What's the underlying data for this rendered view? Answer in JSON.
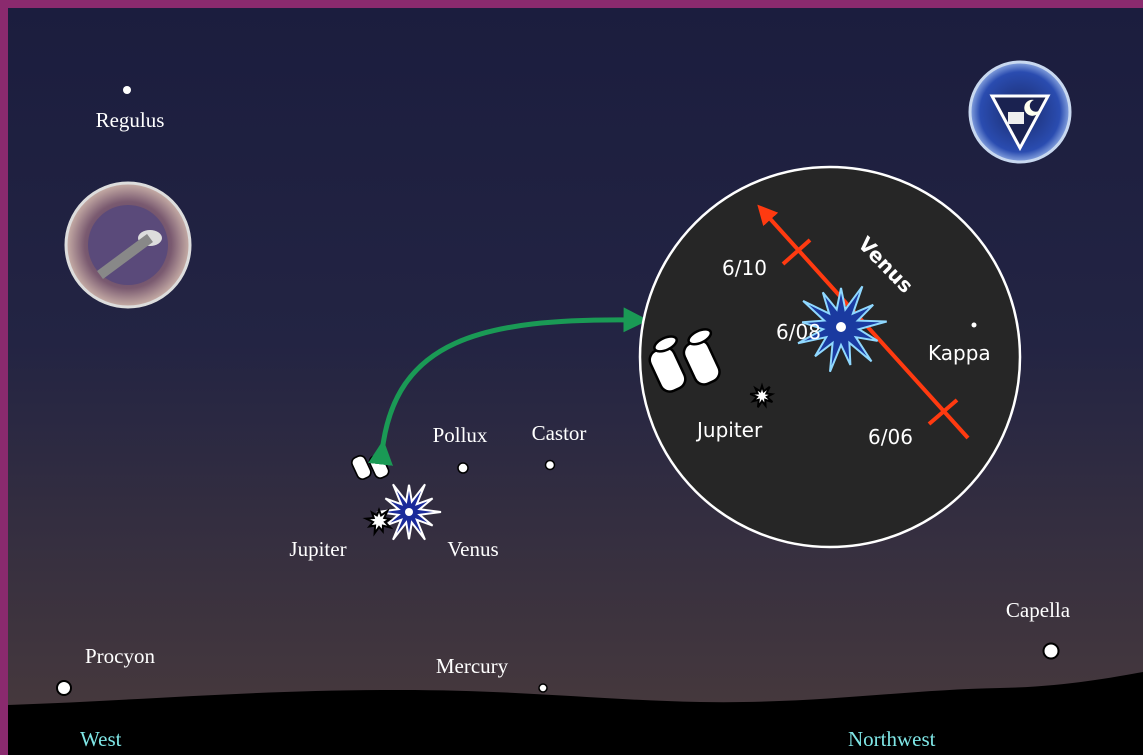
{
  "stars": {
    "regulus": "Regulus",
    "procyon": "Procyon",
    "pollux": "Pollux",
    "castor": "Castor",
    "jupiter": "Jupiter",
    "venus": "Venus",
    "mercury": "Mercury",
    "capella": "Capella"
  },
  "directions": {
    "west": "West",
    "northwest": "Northwest"
  },
  "inset": {
    "title": "Venus",
    "dates": [
      "6/10",
      "6/08",
      "6/06"
    ],
    "kappa": "Kappa",
    "jupiter": "Jupiter"
  }
}
